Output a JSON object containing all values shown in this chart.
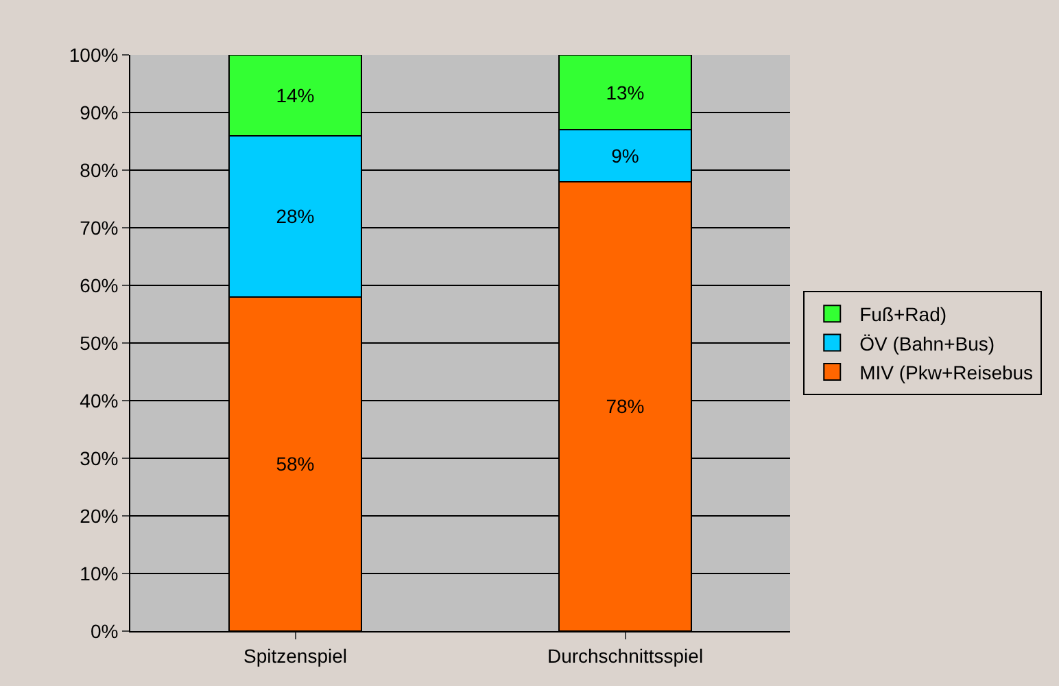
{
  "chart_data": {
    "type": "bar",
    "stacked": true,
    "categories": [
      "Spitzenspiel",
      "Durchschnittsspiel"
    ],
    "series": [
      {
        "name": "MIV (Pkw+Reisebus",
        "color": "#ff6600",
        "values": [
          58,
          78
        ],
        "value_labels": [
          "58%",
          "78%"
        ]
      },
      {
        "name": "ÖV (Bahn+Bus)",
        "color": "#00ccff",
        "values": [
          28,
          9
        ],
        "value_labels": [
          "28%",
          "9%"
        ]
      },
      {
        "name": "Fuß+Rad)",
        "color": "#33ff33",
        "values": [
          14,
          13
        ],
        "value_labels": [
          "14%",
          "13%"
        ]
      }
    ],
    "ylim": [
      0,
      100
    ],
    "yticks": [
      {
        "value": 0,
        "label": "0%"
      },
      {
        "value": 10,
        "label": "10%"
      },
      {
        "value": 20,
        "label": "20%"
      },
      {
        "value": 30,
        "label": "30%"
      },
      {
        "value": 40,
        "label": "40%"
      },
      {
        "value": 50,
        "label": "50%"
      },
      {
        "value": 60,
        "label": "60%"
      },
      {
        "value": 70,
        "label": "70%"
      },
      {
        "value": 80,
        "label": "80%"
      },
      {
        "value": 90,
        "label": "90%"
      },
      {
        "value": 100,
        "label": "100%"
      }
    ],
    "grid": "y",
    "legend": "right"
  }
}
